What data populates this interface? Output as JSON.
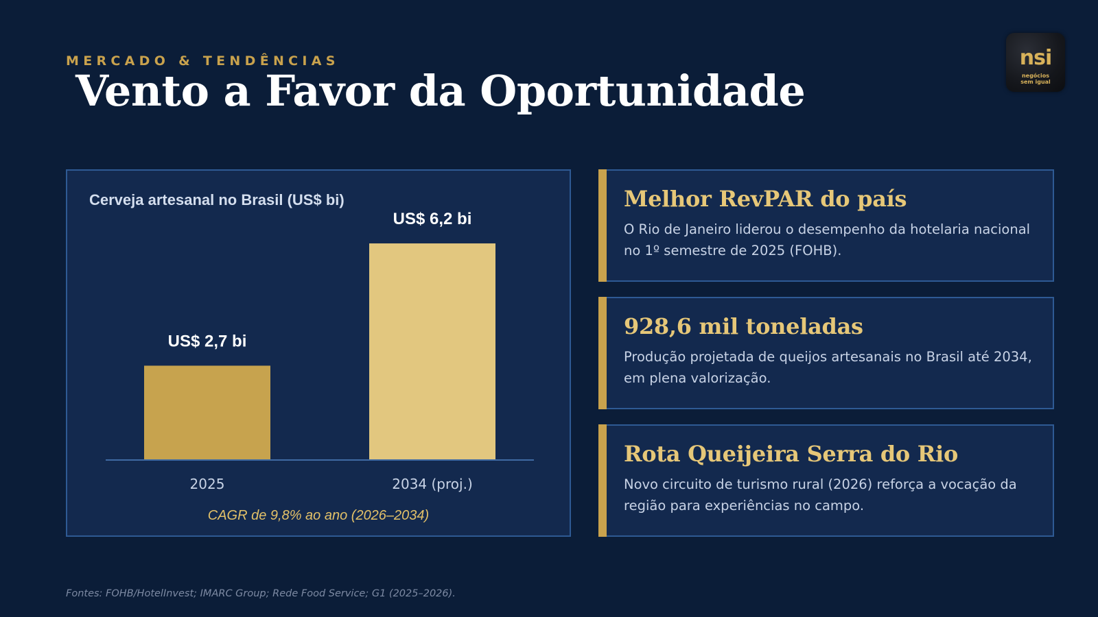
{
  "header": {
    "kicker": "MERCADO & TENDÊNCIAS",
    "title": "Vento a Favor da Oportunidade"
  },
  "logo": {
    "mark": "nsi",
    "line1": "negócios",
    "line2": "sem igual"
  },
  "chart_data": {
    "type": "bar",
    "title": "Cerveja artesanal no Brasil (US$ bi)",
    "categories": [
      "2025",
      "2034 (proj.)"
    ],
    "values": [
      2.7,
      6.2
    ],
    "data_labels": [
      "US$ 2,7 bi",
      "US$ 6,2 bi"
    ],
    "colors": [
      "#c7a34e",
      "#e2c77f"
    ],
    "ylim": [
      0,
      7.3
    ],
    "grid": false,
    "legend": "none",
    "note": "CAGR de 9,8% ao ano (2026–2034)"
  },
  "cards": [
    {
      "title": "Melhor RevPAR do país",
      "body": "O Rio de Janeiro liderou o desempenho da hotelaria nacional no 1º semestre de 2025 (FOHB)."
    },
    {
      "title": "928,6 mil toneladas",
      "body": "Produção projetada de queijos artesanais no Brasil até 2034, em plena valorização."
    },
    {
      "title": "Rota Queijeira Serra do Rio",
      "body": "Novo circuito de turismo rural (2026) reforça a vocação da região para experiências no campo."
    }
  ],
  "footer": {
    "sources": "Fontes: FOHB/HotelInvest; IMARC Group; Rede Food Service; G1 (2025–2026)."
  },
  "colors": {
    "background": "#0b1d38",
    "panel": "#13294e",
    "panel_border": "#2e5a94",
    "accent_gold": "#c9a24d"
  }
}
